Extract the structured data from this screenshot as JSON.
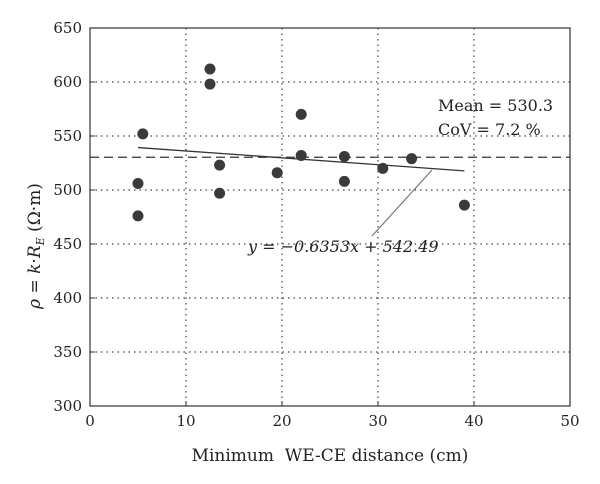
{
  "chart_data": {
    "type": "scatter",
    "xlabel": "Minimum  WE-CE distance (cm)",
    "ylabel": "ρ = k·R_E (Ω·m)",
    "xlim": [
      0,
      50
    ],
    "ylim": [
      300,
      650
    ],
    "xticks": [
      0,
      10,
      20,
      30,
      40,
      50
    ],
    "yticks": [
      300,
      350,
      400,
      450,
      500,
      550,
      600,
      650
    ],
    "grid": "dotted",
    "points": [
      {
        "x": 5.0,
        "y": 506
      },
      {
        "x": 5.0,
        "y": 476
      },
      {
        "x": 5.5,
        "y": 552
      },
      {
        "x": 12.5,
        "y": 612
      },
      {
        "x": 12.5,
        "y": 598
      },
      {
        "x": 13.5,
        "y": 523
      },
      {
        "x": 13.5,
        "y": 497
      },
      {
        "x": 19.5,
        "y": 516
      },
      {
        "x": 22.0,
        "y": 570
      },
      {
        "x": 22.0,
        "y": 532
      },
      {
        "x": 26.5,
        "y": 531
      },
      {
        "x": 26.5,
        "y": 508
      },
      {
        "x": 30.5,
        "y": 520
      },
      {
        "x": 33.5,
        "y": 529
      },
      {
        "x": 39.0,
        "y": 486
      }
    ],
    "mean": 530.3,
    "trendline": {
      "slope": -0.6353,
      "intercept": 542.49,
      "x_range": [
        5,
        39
      ]
    },
    "annotations": {
      "mean_text": "Mean = 530.3",
      "cov_text": "CoV = 7.2 %",
      "equation_text": "y = −0.6353x + 542.49"
    }
  }
}
